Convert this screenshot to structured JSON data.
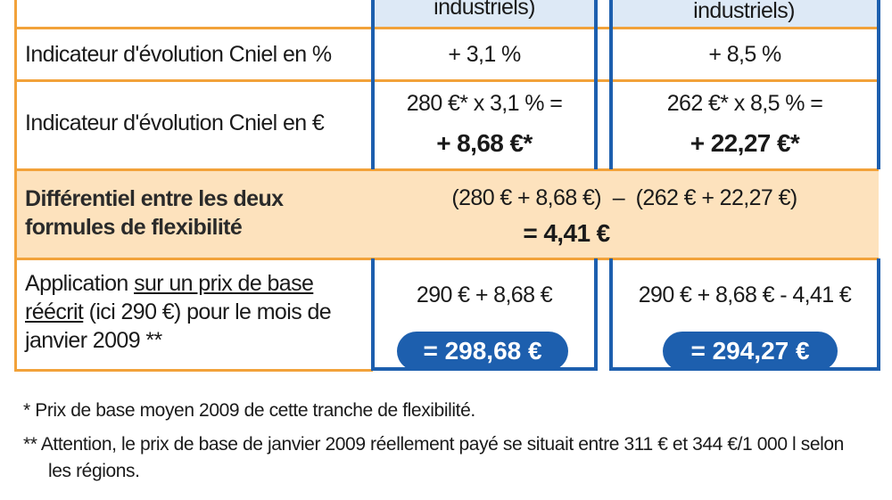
{
  "header": {
    "col1": "industriels)",
    "col2": "industriels)"
  },
  "table": {
    "rows": [
      {
        "label": "Indicateur d'évolution Cniel en %",
        "col1": [
          "+ 3,1 %"
        ],
        "col2": [
          "+ 8,5 %"
        ]
      },
      {
        "label": "Indicateur d'évolution Cniel en €",
        "col1": [
          "280 €* x 3,1 % =",
          "+ 8,68 €*"
        ],
        "col2": [
          "262 €* x 8,5 % =",
          "+ 22,27 €*"
        ]
      },
      {
        "label": "Différentiel entre les deux formules de flexibilité",
        "merged": [
          "(280 € + 8,68 €)  –  (262 € + 22,27 €)",
          "= 4,41 €"
        ]
      },
      {
        "label_parts": [
          "Application ",
          "sur un prix de base réécrit",
          " (ici 290 €) pour le mois de janvier 2009 **"
        ],
        "col1": [
          "290 € + 8,68 €",
          "= 298,68 €"
        ],
        "col2": [
          "290 € + 8,68 € - 4,41 €",
          "= 294,27 €"
        ]
      }
    ]
  },
  "footnotes": [
    "* Prix de base moyen  2009 de cette tranche de flexibilité.",
    "** Attention, le prix de base de janvier 2009 réellement payé se situait entre 311 € et 344 €/1 000 l selon les régions."
  ]
}
